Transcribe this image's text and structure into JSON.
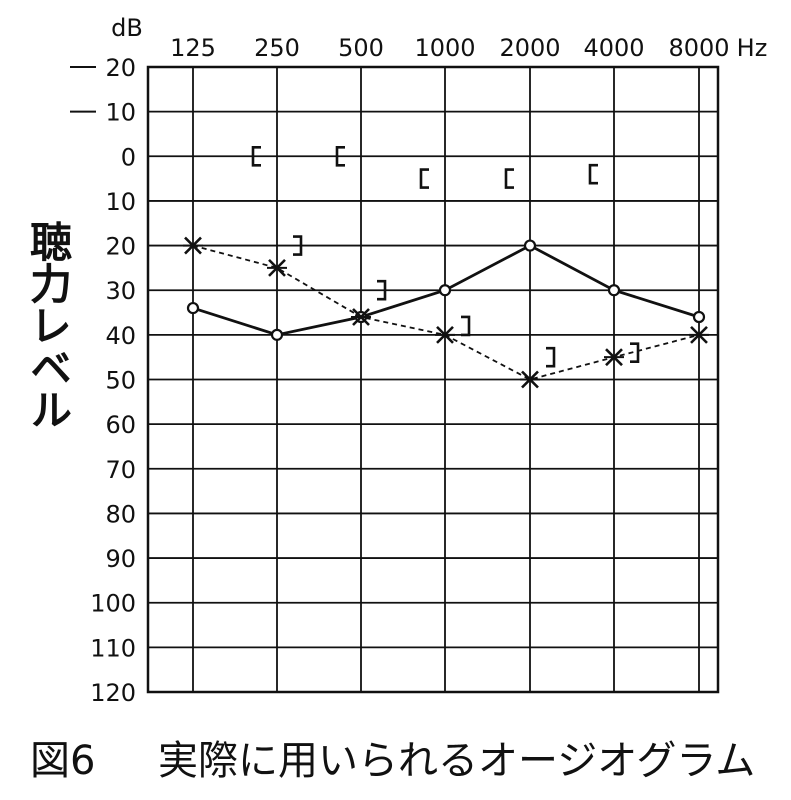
{
  "chart_data": {
    "type": "line",
    "ylabel": "聴力レベル",
    "y_unit": "dB",
    "x_unit": "Hz",
    "ylim": [
      -20,
      120
    ],
    "y_inverted": true,
    "categories": [
      "125",
      "250",
      "500",
      "1000",
      "2000",
      "4000",
      "8000"
    ],
    "y_ticks": [
      "-20",
      "-10",
      "0",
      "10",
      "20",
      "30",
      "40",
      "50",
      "60",
      "70",
      "80",
      "90",
      "100",
      "110",
      "120"
    ],
    "series": [
      {
        "marker": "o",
        "line": "solid",
        "values": [
          34,
          40,
          36,
          30,
          20,
          30,
          36
        ]
      },
      {
        "marker": "x",
        "line": "dashed",
        "values": [
          20,
          25,
          36,
          40,
          50,
          45,
          40
        ]
      }
    ],
    "bracket_left": [
      null,
      0,
      0,
      5,
      5,
      4,
      null
    ],
    "bracket_right": [
      null,
      20,
      30,
      38,
      45,
      44,
      null
    ],
    "grid": true
  },
  "caption": {
    "figure": "図6",
    "text": "実際に用いられるオージオグラム"
  }
}
